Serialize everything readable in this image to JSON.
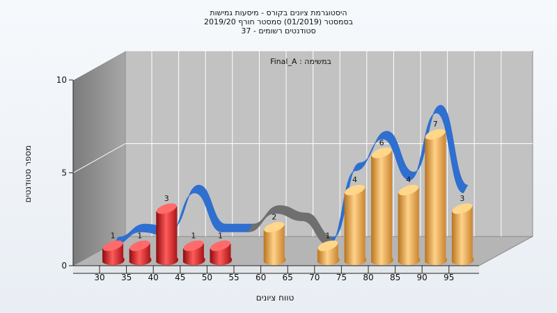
{
  "title_lines": [
    "היסטוגרמת ציונים בקורס - מיסעות גמישות",
    "בסמסטר (01/2019) סמסטר חורף 2019/20",
    "סטודנטים רשומים - 37"
  ],
  "chart_data": {
    "type": "bar",
    "annotation": "Final_A : במשימה",
    "xlabel": "טווח ציונים",
    "ylabel": "מספר סטודנטים",
    "ylim": [
      0,
      10
    ],
    "yticks": [
      0,
      5,
      10
    ],
    "categories": [
      "30",
      "35",
      "40",
      "45",
      "50",
      "55",
      "60",
      "65",
      "70",
      "75",
      "80",
      "85",
      "90",
      "95"
    ],
    "bars": [
      {
        "x": 32.5,
        "value": 1,
        "color": "red"
      },
      {
        "x": 37.5,
        "value": 1,
        "color": "red"
      },
      {
        "x": 42.5,
        "value": 3,
        "color": "red"
      },
      {
        "x": 47.5,
        "value": 1,
        "color": "red"
      },
      {
        "x": 52.5,
        "value": 1,
        "color": "red"
      },
      {
        "x": 62.5,
        "value": 2,
        "color": "orange"
      },
      {
        "x": 72.5,
        "value": 1,
        "color": "orange"
      },
      {
        "x": 77.5,
        "value": 4,
        "color": "orange"
      },
      {
        "x": 82.5,
        "value": 6,
        "color": "orange"
      },
      {
        "x": 87.5,
        "value": 4,
        "color": "orange"
      },
      {
        "x": 92.5,
        "value": 7,
        "color": "orange"
      },
      {
        "x": 97.5,
        "value": 3,
        "color": "orange"
      }
    ],
    "curve": [
      {
        "x": 27.5,
        "value": 0.3,
        "color": "blue"
      },
      {
        "x": 32.5,
        "value": 1.0,
        "color": "blue"
      },
      {
        "x": 37.5,
        "value": 0.8,
        "color": "blue"
      },
      {
        "x": 42.5,
        "value": 3.1,
        "color": "blue"
      },
      {
        "x": 47.5,
        "value": 1.0,
        "color": "blue"
      },
      {
        "x": 52.5,
        "value": 1.0,
        "color": "blue"
      },
      {
        "x": 57.5,
        "value": 2.0,
        "color": "gray"
      },
      {
        "x": 62.5,
        "value": 1.6,
        "color": "gray"
      },
      {
        "x": 67.5,
        "value": 0.3,
        "color": "gray"
      },
      {
        "x": 72.5,
        "value": 4.3,
        "color": "blue"
      },
      {
        "x": 77.5,
        "value": 6.0,
        "color": "blue"
      },
      {
        "x": 82.5,
        "value": 3.8,
        "color": "blue"
      },
      {
        "x": 87.5,
        "value": 7.4,
        "color": "blue"
      },
      {
        "x": 92.5,
        "value": 3.1,
        "color": "blue"
      }
    ],
    "colors": {
      "red": "#d81418",
      "red_light": "#ff6a6a",
      "orange": "#e9a53c",
      "orange_light": "#ffd78a",
      "blue": "#2e6fd0",
      "gray": "#6f6f6f",
      "back_wall": "#c2c2c2",
      "side_wall": "#8e8e8e",
      "floor": "#b9b9b9",
      "grid": "#ffffff"
    },
    "grid": true
  }
}
